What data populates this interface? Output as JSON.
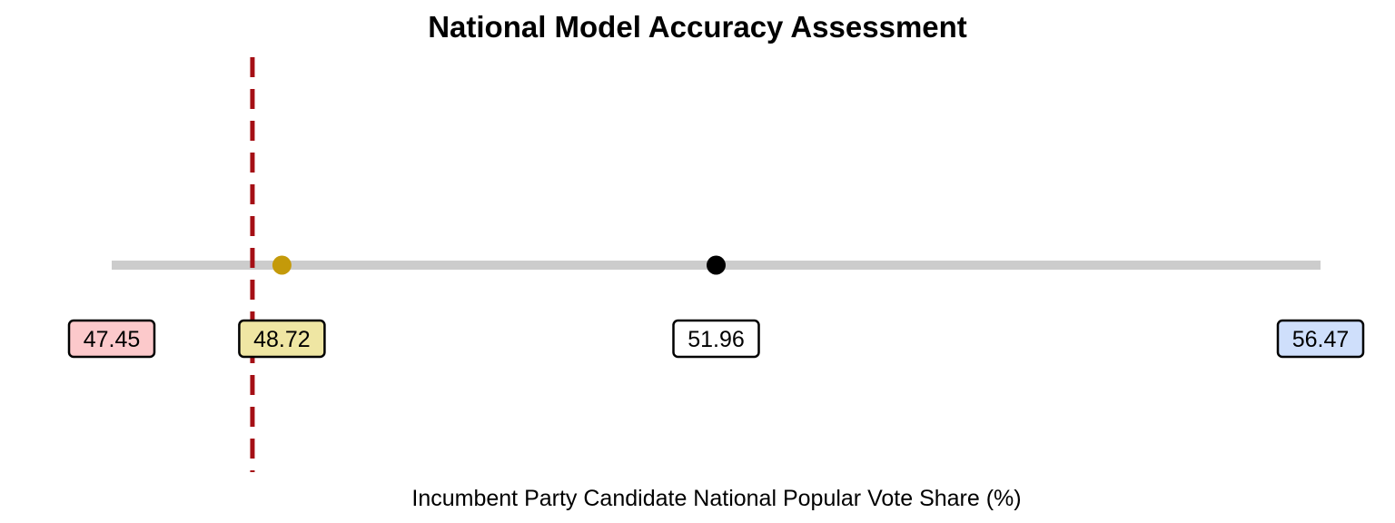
{
  "chart_data": {
    "type": "scatter",
    "title": "National Model Accuracy Assessment",
    "subtitle": "",
    "xlabel": "Incumbent Party Candidate National Popular Vote Share (%)",
    "ylabel": "",
    "xlim": [
      47.45,
      56.47
    ],
    "grid": false,
    "legend": "none",
    "range_line": {
      "x": [
        47.45,
        56.47
      ],
      "color": "#cccccc"
    },
    "reference_line": {
      "x": 48.5,
      "style": "dashed",
      "color": "#a50f15"
    },
    "points": [
      {
        "x": 48.72,
        "label": "48.72",
        "color": "#c49a0a",
        "label_fill": "#efe6a3"
      },
      {
        "x": 51.96,
        "label": "51.96",
        "color": "#000000",
        "label_fill": "#ffffff"
      }
    ],
    "range_labels": [
      {
        "x": 47.45,
        "label": "47.45",
        "label_fill": "#fcc9cb"
      },
      {
        "x": 56.47,
        "label": "56.47",
        "label_fill": "#cfdffb"
      }
    ]
  }
}
